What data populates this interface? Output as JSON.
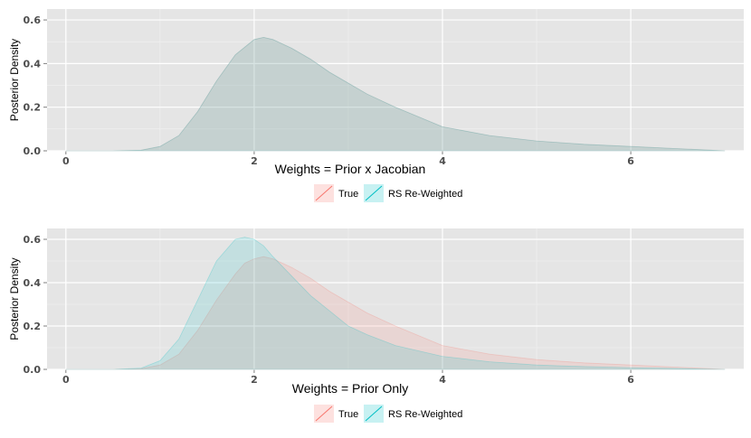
{
  "chart_data": [
    {
      "type": "area",
      "title": "",
      "xlabel": "Weights = Prior x Jacobian",
      "ylabel": "Posterior Density",
      "xlim": [
        -0.2,
        7.2
      ],
      "ylim": [
        0,
        0.65
      ],
      "xticks": [
        "0",
        "2",
        "4",
        "6"
      ],
      "yticks": [
        "0.0",
        "0.2",
        "0.4",
        "0.6"
      ],
      "grid": true,
      "legend_position": "bottom",
      "x": [
        0,
        0.5,
        0.8,
        1.0,
        1.2,
        1.4,
        1.6,
        1.8,
        2.0,
        2.1,
        2.2,
        2.4,
        2.6,
        2.8,
        3.0,
        3.2,
        3.5,
        4.0,
        4.5,
        5.0,
        5.5,
        6.0,
        6.5,
        7.0
      ],
      "series": [
        {
          "name": "True",
          "color": "#F8766D",
          "values": [
            0,
            0,
            0.003,
            0.02,
            0.07,
            0.18,
            0.32,
            0.44,
            0.51,
            0.52,
            0.51,
            0.47,
            0.42,
            0.36,
            0.31,
            0.26,
            0.2,
            0.11,
            0.07,
            0.045,
            0.03,
            0.02,
            0.01,
            0.0
          ]
        },
        {
          "name": "RS Re-Weighted",
          "color": "#00BFC4",
          "values": [
            0,
            0,
            0.003,
            0.02,
            0.07,
            0.18,
            0.32,
            0.44,
            0.51,
            0.52,
            0.51,
            0.47,
            0.42,
            0.36,
            0.31,
            0.26,
            0.2,
            0.11,
            0.07,
            0.045,
            0.03,
            0.02,
            0.01,
            0.0
          ]
        }
      ]
    },
    {
      "type": "area",
      "title": "",
      "xlabel": "Weights = Prior Only",
      "ylabel": "Posterior Density",
      "xlim": [
        -0.2,
        7.2
      ],
      "ylim": [
        0,
        0.65
      ],
      "xticks": [
        "0",
        "2",
        "4",
        "6"
      ],
      "yticks": [
        "0.0",
        "0.2",
        "0.4",
        "0.6"
      ],
      "grid": true,
      "legend_position": "bottom",
      "x": [
        0,
        0.5,
        0.8,
        1.0,
        1.2,
        1.4,
        1.6,
        1.8,
        1.9,
        2.0,
        2.1,
        2.2,
        2.4,
        2.6,
        2.8,
        3.0,
        3.2,
        3.5,
        4.0,
        4.5,
        5.0,
        5.5,
        6.0,
        6.5,
        7.0
      ],
      "series": [
        {
          "name": "True",
          "color": "#F8766D",
          "values": [
            0,
            0,
            0.003,
            0.02,
            0.07,
            0.18,
            0.32,
            0.44,
            0.49,
            0.51,
            0.52,
            0.51,
            0.47,
            0.42,
            0.36,
            0.31,
            0.26,
            0.2,
            0.11,
            0.07,
            0.045,
            0.03,
            0.02,
            0.01,
            0.0
          ]
        },
        {
          "name": "RS  Re-Weighted",
          "color": "#00BFC4",
          "values": [
            0,
            0,
            0.006,
            0.04,
            0.14,
            0.32,
            0.5,
            0.6,
            0.61,
            0.6,
            0.57,
            0.52,
            0.43,
            0.34,
            0.27,
            0.2,
            0.16,
            0.11,
            0.06,
            0.035,
            0.02,
            0.013,
            0.008,
            0.004,
            0.0
          ]
        }
      ]
    }
  ]
}
